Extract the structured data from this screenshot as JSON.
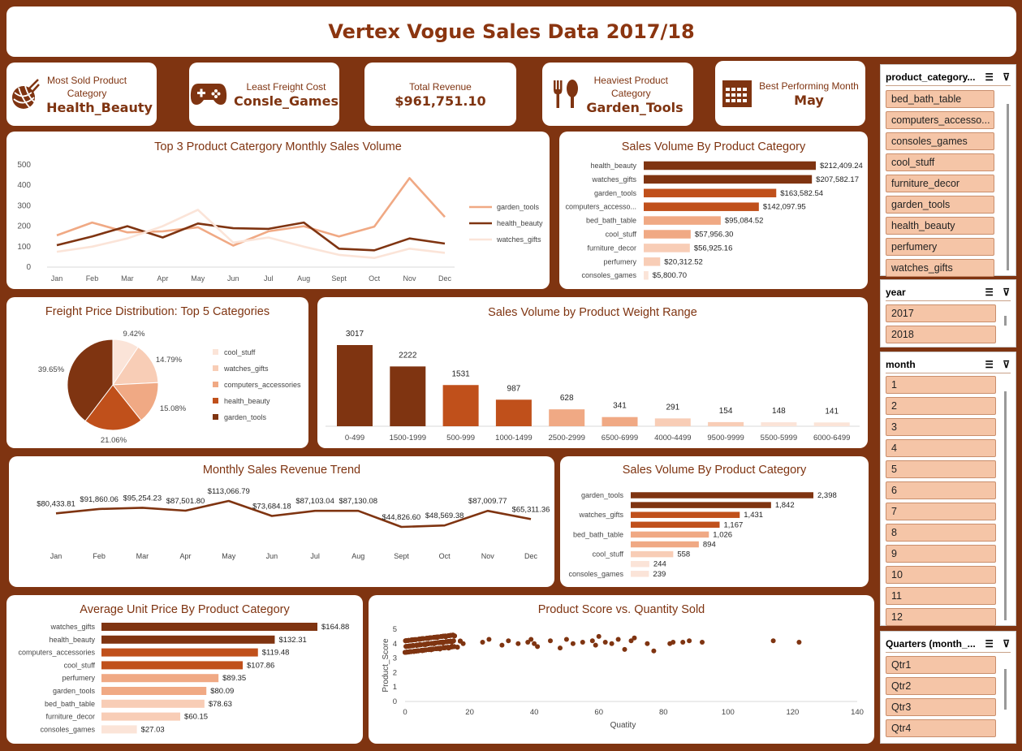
{
  "title": "Vertex Vogue Sales Data 2017/18",
  "kpis": [
    {
      "label": "Most Sold Product Category",
      "value": "Health_Beauty",
      "icon": "yarn-ball-icon"
    },
    {
      "label": "Least Freight Cost",
      "value": "Consle_Games",
      "icon": "gamepad-icon"
    },
    {
      "label": "Total Revenue",
      "value": "$961,751.10"
    },
    {
      "label": "Heaviest Product Category",
      "value": "Garden_Tools",
      "icon": "fork-spoon-icon"
    },
    {
      "label": "Best Performing Month",
      "value": "May",
      "icon": "calendar-icon"
    }
  ],
  "colors": {
    "dark": "#7f3411",
    "mid_dark": "#9a3c13",
    "orange": "#c0501b",
    "light": "#f0a984",
    "pale": "#f8cdb6",
    "very_pale": "#fbe4d8",
    "background": "#7f3411"
  },
  "chart_data": [
    {
      "id": "monthly-line",
      "type": "line",
      "title": "Top 3 Product Catergory Monthly Sales Volume",
      "x": [
        "Jan",
        "Feb",
        "Mar",
        "Apr",
        "May",
        "Jun",
        "Jul",
        "Aug",
        "Sept",
        "Oct",
        "Nov",
        "Dec"
      ],
      "ylim": [
        0,
        500
      ],
      "yticks": [
        0,
        100,
        200,
        300,
        400,
        500
      ],
      "legend": "right",
      "series": [
        {
          "name": "garden_tools",
          "color": "#f0a984",
          "values": [
            155,
            218,
            170,
            175,
            195,
            105,
            175,
            200,
            150,
            198,
            435,
            245
          ]
        },
        {
          "name": "health_beauty",
          "color": "#7f3411",
          "values": [
            107,
            150,
            200,
            145,
            213,
            190,
            187,
            218,
            90,
            82,
            140,
            115
          ]
        },
        {
          "name": "watches_gifts",
          "color": "#fbe4d8",
          "values": [
            75,
            100,
            140,
            200,
            280,
            120,
            145,
            100,
            60,
            45,
            90,
            70
          ]
        }
      ]
    },
    {
      "id": "sales-volume-category-1",
      "type": "bar",
      "orientation": "horizontal",
      "title": "Sales Volume By Product Category",
      "categories": [
        "health_beauty",
        "watches_gifts",
        "garden_tools",
        "computers_accesso...",
        "bed_bath_table",
        "cool_stuff",
        "furniture_decor",
        "perfumery",
        "consoles_games"
      ],
      "values": [
        212409.24,
        207582.17,
        163582.54,
        142097.95,
        95084.52,
        57956.3,
        56925.16,
        20312.52,
        5800.7
      ],
      "labels": [
        "$212,409.24",
        "$207,582.17",
        "$163,582.54",
        "$142,097.95",
        "$95,084.52",
        "$57,956.30",
        "$56,925.16",
        "$20,312.52",
        "$5,800.70"
      ],
      "colors": [
        "#7f3411",
        "#7f3411",
        "#c0501b",
        "#c0501b",
        "#f0a984",
        "#f0a984",
        "#f8cdb6",
        "#f8cdb6",
        "#fbe4d8"
      ]
    },
    {
      "id": "freight-pie",
      "type": "pie",
      "title": "Freight Price Distribution: Top 5 Categories",
      "legend": "right",
      "slices": [
        {
          "name": "cool_stuff",
          "value": 9.42,
          "label": "9.42%",
          "color": "#fbe4d8"
        },
        {
          "name": "watches_gifts",
          "value": 14.79,
          "label": "14.79%",
          "color": "#f8cdb6"
        },
        {
          "name": "computers_accessories",
          "value": 15.08,
          "label": "15.08%",
          "color": "#f0a984"
        },
        {
          "name": "health_beauty",
          "value": 21.06,
          "label": "21.06%",
          "color": "#c0501b"
        },
        {
          "name": "garden_tools",
          "value": 39.65,
          "label": "39.65%",
          "color": "#7f3411"
        }
      ]
    },
    {
      "id": "weight-range-bars",
      "type": "bar",
      "title": "Sales Volume by Product Weight Range",
      "categories": [
        "0-499",
        "1500-1999",
        "500-999",
        "1000-1499",
        "2500-2999",
        "6500-6999",
        "4000-4499",
        "9500-9999",
        "5500-5999",
        "6000-6499"
      ],
      "values": [
        3017,
        2222,
        1531,
        987,
        628,
        341,
        291,
        154,
        148,
        141
      ],
      "colors": [
        "#7f3411",
        "#7f3411",
        "#c0501b",
        "#c0501b",
        "#f0a984",
        "#f0a984",
        "#f8cdb6",
        "#f8cdb6",
        "#fbe4d8",
        "#fbe4d8"
      ]
    },
    {
      "id": "revenue-trend",
      "type": "line",
      "title": "Monthly  Sales Revenue Trend",
      "x": [
        "Jan",
        "Feb",
        "Mar",
        "Apr",
        "May",
        "Jun",
        "Jul",
        "Aug",
        "Sept",
        "Oct",
        "Nov",
        "Dec"
      ],
      "values": [
        80433.81,
        91860.06,
        95254.23,
        87501.8,
        113066.79,
        73684.18,
        87103.04,
        87130.08,
        44826.6,
        48569.38,
        87009.77,
        65311.36
      ],
      "labels": [
        "$80,433.81",
        "$91,860.06",
        "$95,254.23",
        "$87,501.80",
        "$113,066.79",
        "$73,684.18",
        "$87,103.04",
        "$87,130.08",
        "$44,826.60",
        "$48,569.38",
        "$87,009.77",
        "$65,311.36"
      ]
    },
    {
      "id": "sales-volume-category-2",
      "type": "bar",
      "orientation": "horizontal",
      "title": "Sales Volume By Product Category",
      "categories": [
        "garden_tools",
        "",
        "watches_gifts",
        "",
        "bed_bath_table",
        "",
        "cool_stuff",
        "",
        "consoles_games"
      ],
      "values": [
        2398,
        1842,
        1431,
        1167,
        1026,
        894,
        558,
        244,
        239
      ],
      "colors": [
        "#7f3411",
        "#7f3411",
        "#c0501b",
        "#c0501b",
        "#f0a984",
        "#f0a984",
        "#f8cdb6",
        "#fbe4d8",
        "#fbe4d8"
      ]
    },
    {
      "id": "avg-unit-price",
      "type": "bar",
      "orientation": "horizontal",
      "title": "Average Unit Price By Product Category",
      "categories": [
        "watches_gifts",
        "health_beauty",
        "computers_accessories",
        "cool_stuff",
        "perfumery",
        "garden_tools",
        "bed_bath_table",
        "furniture_decor",
        "consoles_games"
      ],
      "values": [
        164.88,
        132.31,
        119.48,
        107.86,
        89.35,
        80.09,
        78.63,
        60.15,
        27.03
      ],
      "labels": [
        "$164.88",
        "$132.31",
        "$119.48",
        "$107.86",
        "$89.35",
        "$80.09",
        "$78.63",
        "$60.15",
        "$27.03"
      ],
      "colors": [
        "#7f3411",
        "#7f3411",
        "#c0501b",
        "#c0501b",
        "#f0a984",
        "#f0a984",
        "#f8cdb6",
        "#f8cdb6",
        "#fbe4d8"
      ]
    },
    {
      "id": "score-scatter",
      "type": "scatter",
      "title": "Product Score vs. Quantity Sold",
      "xlabel": "Quatity",
      "ylabel": "Product_Score",
      "xlim": [
        0,
        140
      ],
      "ylim": [
        0,
        5
      ],
      "xticks": [
        0,
        20,
        40,
        60,
        80,
        100,
        120,
        140
      ],
      "yticks": [
        0,
        1,
        2,
        3,
        4,
        5
      ],
      "points": [
        [
          18,
          4.0
        ],
        [
          24,
          4.1
        ],
        [
          26,
          4.3
        ],
        [
          30,
          3.9
        ],
        [
          32,
          4.2
        ],
        [
          35,
          4.0
        ],
        [
          38,
          4.1
        ],
        [
          39,
          4.3
        ],
        [
          40,
          4.0
        ],
        [
          41,
          3.8
        ],
        [
          45,
          4.2
        ],
        [
          48,
          3.7
        ],
        [
          50,
          4.3
        ],
        [
          52,
          4.0
        ],
        [
          55,
          4.1
        ],
        [
          58,
          4.2
        ],
        [
          59,
          3.9
        ],
        [
          60,
          4.5
        ],
        [
          62,
          4.1
        ],
        [
          64,
          4.0
        ],
        [
          66,
          4.3
        ],
        [
          68,
          3.6
        ],
        [
          70,
          4.2
        ],
        [
          71,
          4.4
        ],
        [
          75,
          4.0
        ],
        [
          77,
          3.5
        ],
        [
          82,
          4.0
        ],
        [
          83,
          4.1
        ],
        [
          86,
          4.1
        ],
        [
          88,
          4.2
        ],
        [
          92,
          4.1
        ],
        [
          114,
          4.2
        ],
        [
          122,
          4.1
        ]
      ],
      "dense_region": {
        "x_max": 18,
        "y_range": [
          3.4,
          4.6
        ]
      }
    }
  ],
  "slicers": [
    {
      "title": "product_category...",
      "items": [
        "bed_bath_table",
        "computers_accesso...",
        "consoles_games",
        "cool_stuff",
        "furniture_decor",
        "garden_tools",
        "health_beauty",
        "perfumery",
        "watches_gifts"
      ]
    },
    {
      "title": "year",
      "items": [
        "2017",
        "2018"
      ]
    },
    {
      "title": "month",
      "items": [
        "1",
        "2",
        "3",
        "4",
        "5",
        "6",
        "7",
        "8",
        "9",
        "10",
        "11",
        "12"
      ]
    },
    {
      "title": "Quarters (month_...",
      "items": [
        "Qtr1",
        "Qtr2",
        "Qtr3",
        "Qtr4"
      ]
    }
  ]
}
